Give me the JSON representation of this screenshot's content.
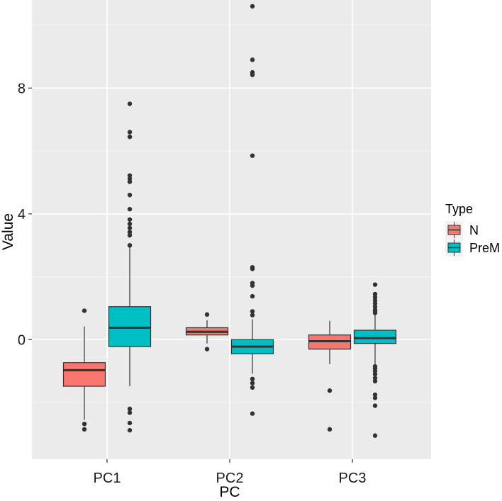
{
  "chart_data": {
    "type": "boxplot",
    "title": "",
    "xlabel": "PC",
    "ylabel": "Value",
    "ylim": [
      -3.8,
      10.8
    ],
    "yticks": [
      0,
      4,
      8
    ],
    "grid": true,
    "categories": [
      "PC1",
      "PC2",
      "PC3"
    ],
    "legend": {
      "title": "Type",
      "placement": "right",
      "entries": [
        {
          "name": "N",
          "color": "#F8766D"
        },
        {
          "name": "PreM",
          "color": "#00BFC4"
        }
      ]
    },
    "series": [
      {
        "name": "N",
        "color": "#F8766D",
        "boxes": [
          {
            "category": "PC1",
            "q1": -1.48,
            "median": -0.97,
            "q3": -0.73,
            "whisker_low": -2.55,
            "whisker_high": 0.42,
            "outliers": [
              0.92,
              -2.68,
              -2.85
            ]
          },
          {
            "category": "PC2",
            "q1": 0.15,
            "median": 0.25,
            "q3": 0.38,
            "whisker_low": -0.12,
            "whisker_high": 0.62,
            "outliers": [
              0.8,
              -0.3
            ]
          },
          {
            "category": "PC3",
            "q1": -0.3,
            "median": -0.05,
            "q3": 0.15,
            "whisker_low": -0.78,
            "whisker_high": 0.6,
            "outliers": [
              -1.62,
              -2.85
            ]
          }
        ]
      },
      {
        "name": "PreM",
        "color": "#00BFC4",
        "boxes": [
          {
            "category": "PC1",
            "q1": -0.22,
            "median": 0.38,
            "q3": 1.05,
            "whisker_low": -1.48,
            "whisker_high": 2.95,
            "outliers": [
              7.5,
              6.6,
              6.45,
              5.22,
              5.12,
              5.02,
              4.6,
              4.15,
              3.82,
              3.68,
              3.55,
              3.42,
              3.32,
              3.0,
              -2.2,
              -2.32,
              -2.65,
              -2.88
            ]
          },
          {
            "category": "PC2",
            "q1": -0.45,
            "median": -0.22,
            "q3": 0.0,
            "whisker_low": -1.08,
            "whisker_high": 0.65,
            "outliers": [
              10.6,
              8.9,
              8.5,
              8.42,
              5.85,
              2.3,
              2.25,
              1.8,
              1.72,
              1.38,
              0.9,
              0.78,
              -1.25,
              -1.38,
              -1.52,
              -2.35
            ]
          },
          {
            "category": "PC3",
            "q1": -0.12,
            "median": 0.05,
            "q3": 0.3,
            "whisker_low": -0.78,
            "whisker_high": 0.82,
            "outliers": [
              1.75,
              1.45,
              1.35,
              1.25,
              1.15,
              1.05,
              0.95,
              0.9,
              0.85,
              -0.85,
              -0.92,
              -1.0,
              -1.1,
              -1.22,
              -1.32,
              -1.75,
              -1.85,
              -2.1,
              -3.05
            ]
          }
        ]
      }
    ]
  }
}
